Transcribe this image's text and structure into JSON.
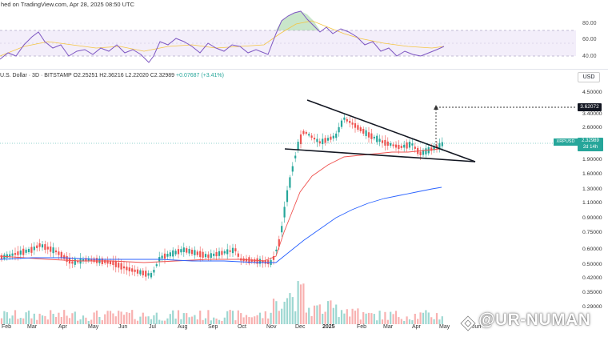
{
  "header": {
    "published_text": "hed on TradingView.com, Apr 28, 2025 08:50 UTC"
  },
  "legend": {
    "symbol": "U.S. Dollar · 3D · BITSTAMP",
    "open": "O2.25251",
    "high": "H2.36216",
    "low": "L2.22020",
    "close": "C2.32989",
    "change": "+0.07687 (+3.41%)"
  },
  "rsi_axis": {
    "ticks": [
      "80.00",
      "60.00",
      "40.00"
    ]
  },
  "price_axis": {
    "currency_button": "USD",
    "ticks": [
      "4.50000",
      "3.40000",
      "2.60000",
      "1.90000",
      "1.60000",
      "1.30000",
      "1.10000",
      "0.90000",
      "0.75000",
      "0.60000",
      "0.50000",
      "0.42000",
      "0.35000",
      "0.29000"
    ],
    "target_label": "3.62072",
    "ticker_label": "XRPUSD",
    "current_price": "2.32989",
    "countdown": "2d 14h"
  },
  "time_axis": {
    "labels": [
      "Feb",
      "Mar",
      "Apr",
      "May",
      "Jun",
      "Jul",
      "Aug",
      "Sep",
      "Oct",
      "Nov",
      "Dec",
      "2025",
      "Feb",
      "Mar",
      "Apr",
      "May",
      "Jun"
    ]
  },
  "watermark": {
    "text": "@UR-NUMAN"
  },
  "colors": {
    "up": "#26a69a",
    "down": "#ef5350",
    "ma_short": "#ef5350",
    "ma_long": "#2962ff",
    "rsi_line": "#7e57c2",
    "rsi_band": "#ede7f6"
  }
}
